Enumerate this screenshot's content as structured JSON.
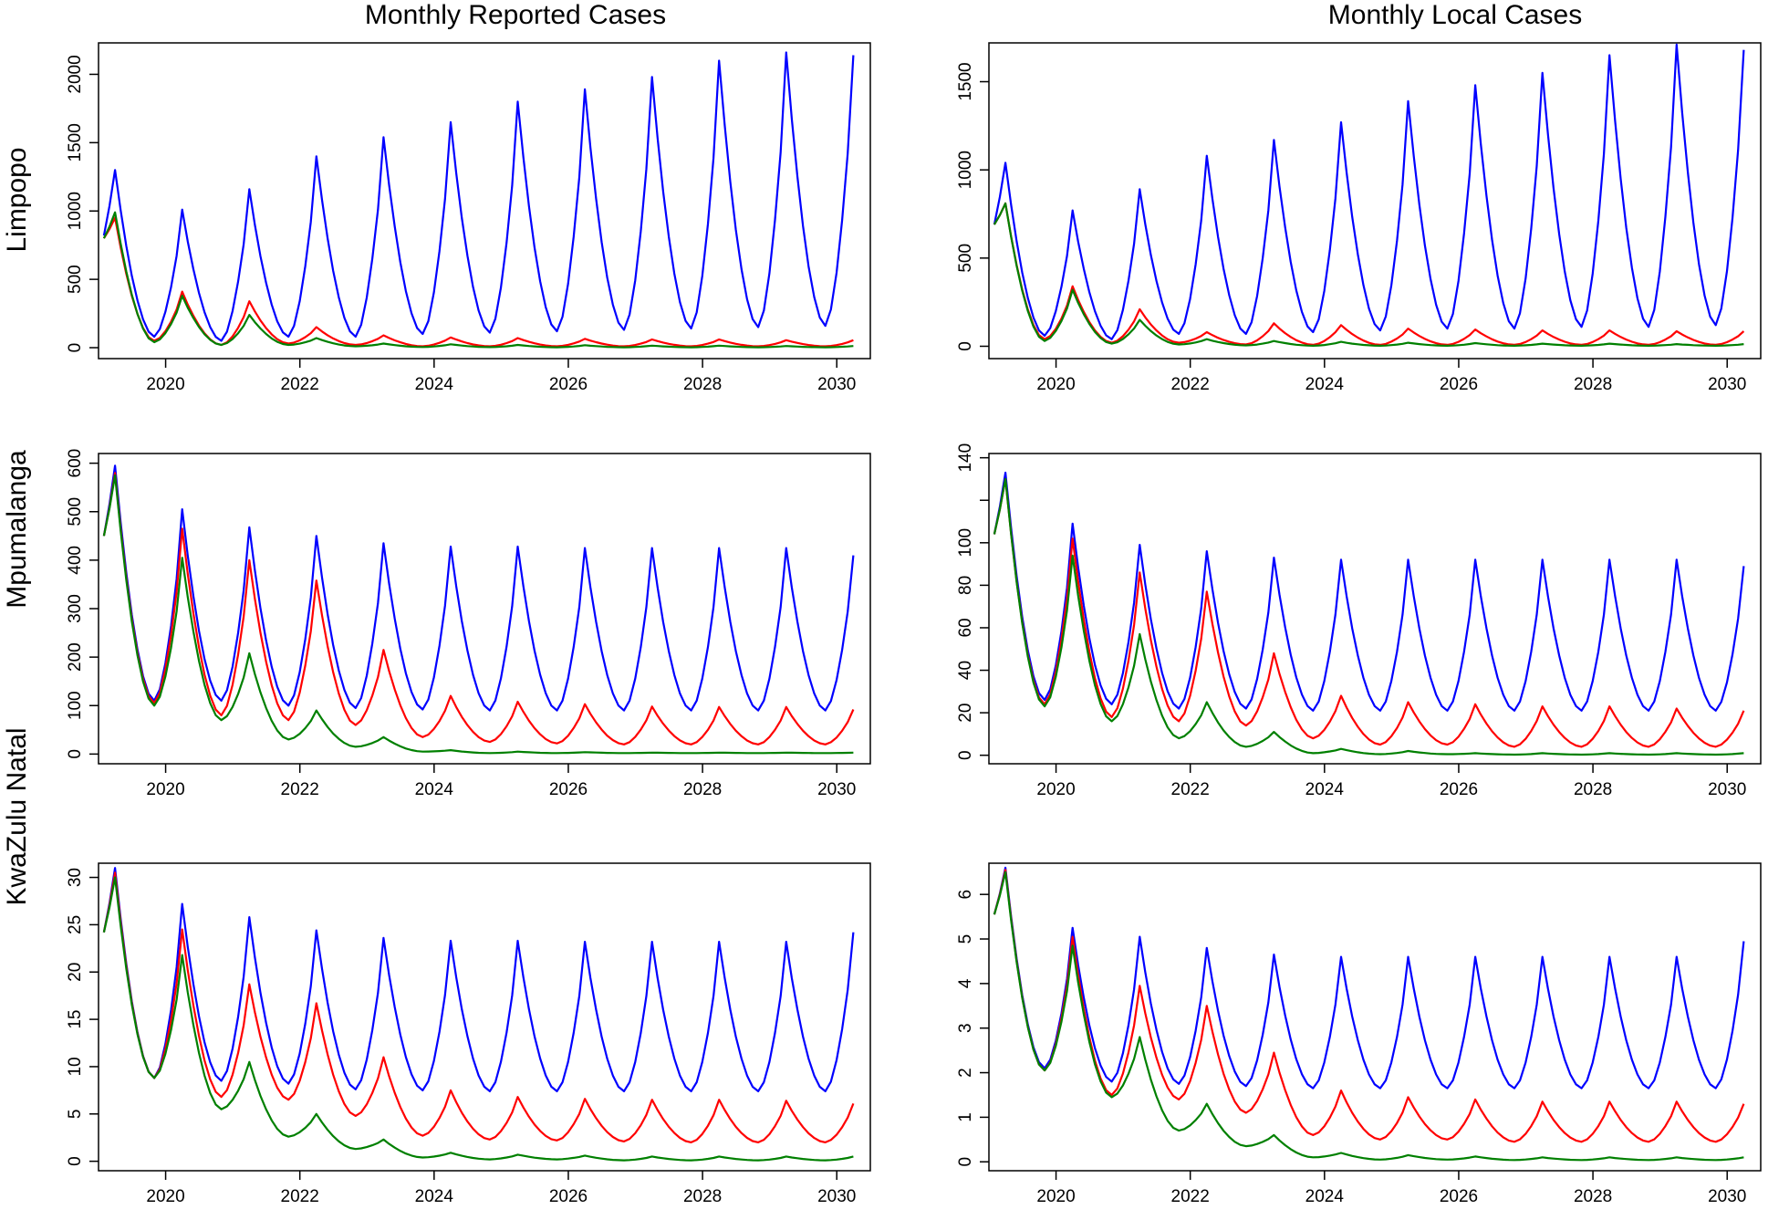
{
  "figure": {
    "column_titles": [
      "Monthly Reported Cases",
      "Monthly Local Cases"
    ],
    "row_labels": [
      "Limpopo",
      "Mpumalanga",
      "KwaZulu Natal"
    ],
    "series_colors": {
      "blue": "#0000ff",
      "red": "#ff0000",
      "green": "#008000"
    },
    "x_tick_labels": [
      "2020",
      "2022",
      "2024",
      "2026",
      "2028",
      "2030"
    ]
  },
  "chart_data": [
    {
      "type": "line",
      "title": "Monthly Reported Cases",
      "region": "Limpopo",
      "xlabel": "",
      "ylabel": "Limpopo",
      "xlim": [
        2019.0,
        2030.5
      ],
      "ylim": [
        -80,
        2230
      ],
      "xticks": [
        2020,
        2022,
        2024,
        2026,
        2028,
        2030
      ],
      "yticks": [
        0,
        500,
        1000,
        1500,
        2000
      ],
      "ytick_labels": [
        "0",
        "500",
        "1000",
        "1500",
        "2000"
      ],
      "x_start": 2019.08,
      "x_step": 0.0833333,
      "peaks": {
        "blue": [
          1300,
          1010,
          1160,
          1400,
          1540,
          1650,
          1800,
          1890,
          1980,
          2100,
          2160,
          2140
        ],
        "red": [
          950,
          410,
          340,
          150,
          90,
          75,
          70,
          65,
          60,
          60,
          55,
          55
        ],
        "green": [
          990,
          380,
          240,
          70,
          30,
          25,
          20,
          18,
          15,
          15,
          12,
          12
        ]
      },
      "troughs": {
        "blue": [
          80,
          50,
          80,
          80,
          100,
          110,
          120,
          130,
          140,
          150,
          160,
          170
        ],
        "red": [
          50,
          20,
          30,
          20,
          10,
          10,
          10,
          10,
          10,
          10,
          10,
          10
        ],
        "green": [
          40,
          20,
          20,
          10,
          5,
          4,
          3,
          3,
          3,
          3,
          3,
          3
        ]
      },
      "series": [
        {
          "name": "blue",
          "color": "#0000ff",
          "start": 820
        },
        {
          "name": "red",
          "color": "#ff0000",
          "start": 800
        },
        {
          "name": "green",
          "color": "#008000",
          "start": 800
        }
      ]
    },
    {
      "type": "line",
      "title": "Monthly Local Cases",
      "region": "Limpopo",
      "xlabel": "",
      "ylabel": "",
      "xlim": [
        2019.0,
        2030.5
      ],
      "ylim": [
        -70,
        1720
      ],
      "xticks": [
        2020,
        2022,
        2024,
        2026,
        2028,
        2030
      ],
      "yticks": [
        0,
        500,
        1000,
        1500
      ],
      "ytick_labels": [
        "0",
        "500",
        "1000",
        "1500"
      ],
      "x_start": 2019.08,
      "x_step": 0.0833333,
      "peaks": {
        "blue": [
          1040,
          770,
          890,
          1080,
          1170,
          1270,
          1390,
          1480,
          1550,
          1650,
          1710,
          1680
        ],
        "red": [
          810,
          340,
          210,
          80,
          130,
          120,
          100,
          95,
          90,
          90,
          85,
          85
        ],
        "green": [
          810,
          320,
          150,
          40,
          30,
          25,
          20,
          18,
          15,
          15,
          12,
          12
        ]
      },
      "troughs": {
        "blue": [
          60,
          40,
          70,
          70,
          80,
          90,
          100,
          100,
          110,
          110,
          120,
          120
        ],
        "red": [
          40,
          20,
          20,
          10,
          8,
          8,
          8,
          8,
          8,
          8,
          8,
          8
        ],
        "green": [
          30,
          15,
          10,
          5,
          3,
          3,
          3,
          3,
          3,
          3,
          3,
          3
        ]
      },
      "series": [
        {
          "name": "blue",
          "color": "#0000ff",
          "start": 690
        },
        {
          "name": "red",
          "color": "#ff0000",
          "start": 690
        },
        {
          "name": "green",
          "color": "#008000",
          "start": 690
        }
      ]
    },
    {
      "type": "line",
      "title": "Monthly Reported Cases",
      "region": "Mpumalanga",
      "xlabel": "",
      "ylabel": "Mpumalanga",
      "xlim": [
        2019.0,
        2030.5
      ],
      "ylim": [
        -20,
        620
      ],
      "xticks": [
        2020,
        2022,
        2024,
        2026,
        2028,
        2030
      ],
      "yticks": [
        0,
        100,
        200,
        300,
        400,
        500,
        600
      ],
      "ytick_labels": [
        "0",
        "100",
        "200",
        "300",
        "400",
        "500",
        "600"
      ],
      "x_start": 2019.08,
      "x_step": 0.0833333,
      "peaks": {
        "blue": [
          595,
          505,
          468,
          450,
          435,
          428,
          428,
          425,
          425,
          425,
          425,
          410
        ],
        "red": [
          580,
          465,
          400,
          358,
          215,
          120,
          108,
          103,
          98,
          97,
          97,
          92
        ],
        "green": [
          575,
          405,
          208,
          90,
          35,
          8,
          5,
          4,
          3,
          3,
          3,
          3
        ]
      },
      "troughs": {
        "blue": [
          110,
          110,
          100,
          95,
          92,
          90,
          90,
          90,
          90,
          90,
          90,
          90
        ],
        "red": [
          105,
          80,
          70,
          60,
          35,
          25,
          22,
          20,
          20,
          20,
          20,
          20
        ],
        "green": [
          100,
          70,
          30,
          15,
          5,
          2,
          2,
          2,
          2,
          2,
          2,
          2
        ]
      },
      "series": [
        {
          "name": "blue",
          "color": "#0000ff",
          "start": 450
        },
        {
          "name": "red",
          "color": "#ff0000",
          "start": 450
        },
        {
          "name": "green",
          "color": "#008000",
          "start": 450
        }
      ]
    },
    {
      "type": "line",
      "title": "Monthly Local Cases",
      "region": "Mpumalanga",
      "xlabel": "",
      "ylabel": "",
      "xlim": [
        2019.0,
        2030.5
      ],
      "ylim": [
        -4,
        142
      ],
      "xticks": [
        2020,
        2022,
        2024,
        2026,
        2028,
        2030
      ],
      "yticks": [
        0,
        20,
        40,
        60,
        80,
        100,
        120,
        140
      ],
      "ytick_labels": [
        "0",
        "20",
        "40",
        "60",
        "80",
        "100",
        "",
        "140"
      ],
      "x_start": 2019.08,
      "x_step": 0.0833333,
      "peaks": {
        "blue": [
          133,
          109,
          99,
          96,
          93,
          92,
          92,
          92,
          92,
          92,
          92,
          89
        ],
        "red": [
          130,
          102,
          86,
          77,
          48,
          28,
          25,
          24,
          23,
          23,
          22,
          21
        ],
        "green": [
          130,
          94,
          57,
          25,
          11,
          3,
          2,
          1,
          1,
          1,
          1,
          1
        ]
      },
      "troughs": {
        "blue": [
          26,
          24,
          22,
          22,
          21,
          21,
          21,
          21,
          21,
          21,
          21,
          21
        ],
        "red": [
          24,
          18,
          16,
          14,
          8,
          5,
          5,
          4,
          4,
          4,
          4,
          4
        ],
        "green": [
          23,
          16,
          8,
          4,
          1,
          0.5,
          0.5,
          0.3,
          0.3,
          0.3,
          0.3,
          0.3
        ]
      },
      "series": [
        {
          "name": "blue",
          "color": "#0000ff",
          "start": 104
        },
        {
          "name": "red",
          "color": "#ff0000",
          "start": 104
        },
        {
          "name": "green",
          "color": "#008000",
          "start": 104
        }
      ]
    },
    {
      "type": "line",
      "title": "Monthly Reported Cases",
      "region": "KwaZulu Natal",
      "xlabel": "",
      "ylabel": "KwaZulu Natal",
      "xlim": [
        2019.0,
        2030.5
      ],
      "ylim": [
        -1,
        31.5
      ],
      "xticks": [
        2020,
        2022,
        2024,
        2026,
        2028,
        2030
      ],
      "yticks": [
        0,
        5,
        10,
        15,
        20,
        25,
        30
      ],
      "ytick_labels": [
        "0",
        "5",
        "10",
        "15",
        "20",
        "25",
        "30"
      ],
      "x_start": 2019.08,
      "x_step": 0.0833333,
      "peaks": {
        "blue": [
          31,
          27.2,
          25.8,
          24.4,
          23.6,
          23.3,
          23.3,
          23.2,
          23.2,
          23.2,
          23.2,
          24.2
        ],
        "red": [
          30.5,
          24.5,
          18.7,
          16.7,
          11,
          7.5,
          6.8,
          6.6,
          6.5,
          6.5,
          6.4,
          6.1
        ],
        "green": [
          30,
          21.8,
          10.5,
          5,
          2.3,
          0.9,
          0.7,
          0.6,
          0.5,
          0.5,
          0.5,
          0.5
        ]
      },
      "troughs": {
        "blue": [
          8.8,
          8.5,
          8.2,
          7.6,
          7.5,
          7.4,
          7.4,
          7.4,
          7.4,
          7.4,
          7.4,
          7.4
        ],
        "red": [
          8.8,
          6.8,
          6.5,
          4.8,
          2.7,
          2.3,
          2.2,
          2.1,
          2.0,
          2.0,
          2.0,
          2.0
        ],
        "green": [
          8.8,
          5.5,
          2.6,
          1.3,
          0.4,
          0.2,
          0.2,
          0.1,
          0.1,
          0.1,
          0.1,
          0.1
        ]
      },
      "series": [
        {
          "name": "blue",
          "color": "#0000ff",
          "start": 24.2
        },
        {
          "name": "red",
          "color": "#ff0000",
          "start": 24.2
        },
        {
          "name": "green",
          "color": "#008000",
          "start": 24.2
        }
      ]
    },
    {
      "type": "line",
      "title": "Monthly Local Cases",
      "region": "KwaZulu Natal",
      "xlabel": "",
      "ylabel": "",
      "xlim": [
        2019.0,
        2030.5
      ],
      "ylim": [
        -0.2,
        6.7
      ],
      "xticks": [
        2020,
        2022,
        2024,
        2026,
        2028,
        2030
      ],
      "yticks": [
        0,
        1,
        2,
        3,
        4,
        5,
        6
      ],
      "ytick_labels": [
        "0",
        "1",
        "2",
        "3",
        "4",
        "5",
        "6"
      ],
      "x_start": 2019.08,
      "x_step": 0.0833333,
      "peaks": {
        "blue": [
          6.6,
          5.25,
          5.05,
          4.8,
          4.65,
          4.6,
          4.6,
          4.6,
          4.6,
          4.6,
          4.6,
          4.95
        ],
        "red": [
          6.55,
          5.05,
          3.95,
          3.5,
          2.45,
          1.6,
          1.45,
          1.4,
          1.35,
          1.35,
          1.35,
          1.3
        ],
        "green": [
          6.5,
          4.85,
          2.8,
          1.3,
          0.6,
          0.2,
          0.15,
          0.12,
          0.1,
          0.1,
          0.1,
          0.1
        ]
      },
      "troughs": {
        "blue": [
          2.1,
          1.8,
          1.75,
          1.7,
          1.65,
          1.65,
          1.65,
          1.65,
          1.65,
          1.65,
          1.65,
          1.65
        ],
        "red": [
          2.05,
          1.5,
          1.4,
          1.1,
          0.6,
          0.5,
          0.5,
          0.45,
          0.45,
          0.45,
          0.45,
          0.45
        ],
        "green": [
          2.05,
          1.45,
          0.7,
          0.35,
          0.1,
          0.05,
          0.05,
          0.04,
          0.04,
          0.04,
          0.04,
          0.04
        ]
      },
      "series": [
        {
          "name": "blue",
          "color": "#0000ff",
          "start": 5.55
        },
        {
          "name": "red",
          "color": "#ff0000",
          "start": 5.55
        },
        {
          "name": "green",
          "color": "#008000",
          "start": 5.55
        }
      ]
    }
  ]
}
